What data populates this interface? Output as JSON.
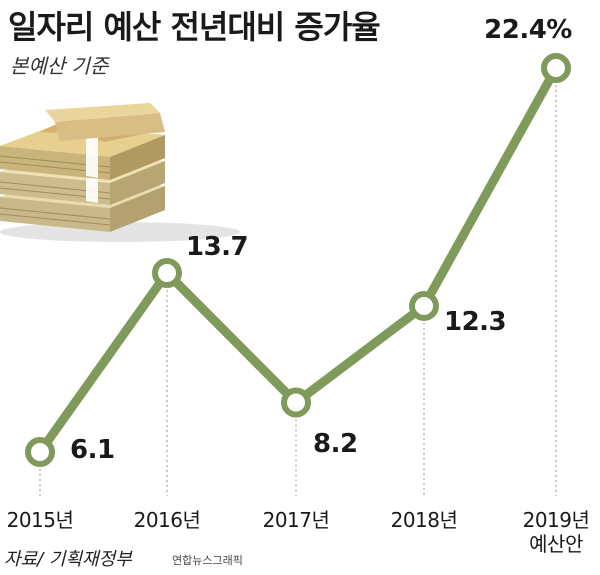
{
  "title": "일자리 예산 전년대비 증가율",
  "subtitle": "본예산 기준",
  "source": "자료/ 기획재정부",
  "credit": "연합뉴스그래픽",
  "chart_data": {
    "type": "line",
    "title": "일자리 예산 전년대비 증가율",
    "subtitle": "본예산 기준",
    "categories": [
      "2015년",
      "2016년",
      "2017년",
      "2018년",
      "2019년 예산안"
    ],
    "category_lines": [
      [
        "2015년"
      ],
      [
        "2016년"
      ],
      [
        "2017년"
      ],
      [
        "2018년"
      ],
      [
        "2019년",
        "예산안"
      ]
    ],
    "values": [
      6.1,
      13.7,
      8.2,
      12.3,
      22.4
    ],
    "value_labels": [
      "6.1",
      "13.7",
      "8.2",
      "12.3",
      "22.4%"
    ],
    "unit": "%",
    "line_color": "#7f9a5a",
    "dropline_color": "#bbbbbb",
    "grid": false,
    "legend": "none"
  }
}
